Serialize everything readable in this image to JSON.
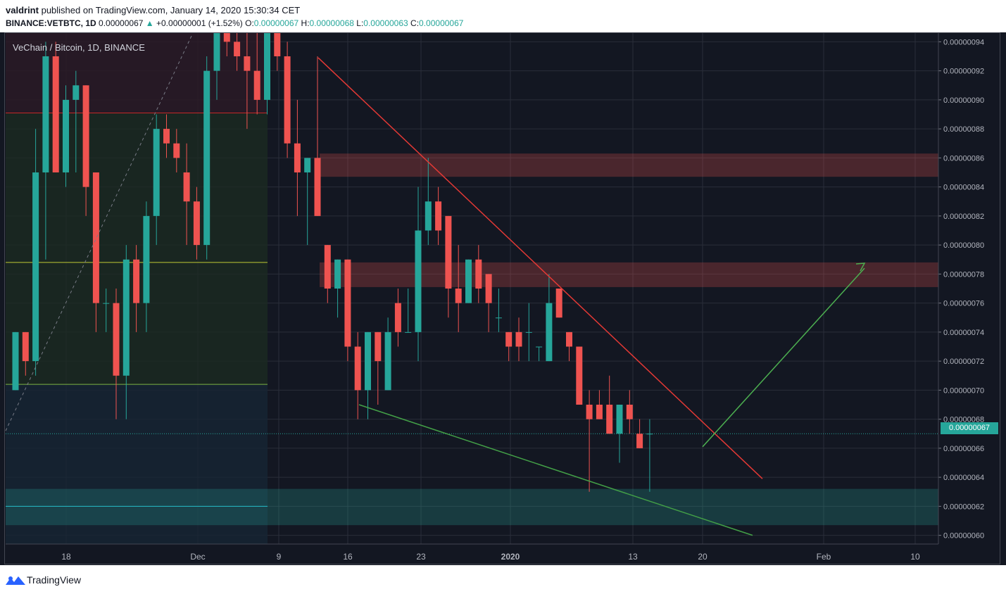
{
  "header": {
    "author": "valdrint",
    "published_text": "published on TradingView.com, January 14, 2020 15:30:34 CET",
    "symbol": "BINANCE:VETBTC, 1D",
    "last": "0.00000067",
    "change": "+0.00000001 (+1.52%)",
    "o_label": "O:",
    "o_value": "0.00000067",
    "h_label": "H:",
    "h_value": "0.00000068",
    "l_label": "L:",
    "l_value": "0.00000063",
    "c_label": "C:",
    "c_value": "0.00000067"
  },
  "legend": "VeChain / Bitcoin, 1D, BINANCE",
  "current_price": "0.00000067",
  "footer": {
    "brand": "TradingView"
  },
  "colors": {
    "up": "#26a69a",
    "down": "#ef5350",
    "bg": "#131722",
    "grid": "#2a2e39"
  },
  "chart_data": {
    "type": "candlestick",
    "y_ticks": [
      "0.00000094",
      "0.00000092",
      "0.00000090",
      "0.00000088",
      "0.00000086",
      "0.00000084",
      "0.00000082",
      "0.00000080",
      "0.00000078",
      "0.00000076",
      "0.00000074",
      "0.00000072",
      "0.00000070",
      "0.00000068",
      "0.00000066",
      "0.00000064",
      "0.00000062",
      "0.00000060"
    ],
    "x_ticks": [
      "18",
      "Dec",
      "9",
      "16",
      "23",
      "2020",
      "13",
      "20",
      "Feb",
      "10"
    ],
    "ylim": [
      5.94e-07,
      9.46e-07
    ],
    "candles": [
      {
        "o": 7e-07,
        "h": 7.4e-07,
        "l": 7e-07,
        "c": 7.4e-07
      },
      {
        "o": 7.4e-07,
        "h": 7.4e-07,
        "l": 7.1e-07,
        "c": 7.2e-07
      },
      {
        "o": 7.2e-07,
        "h": 8.8e-07,
        "l": 7.1e-07,
        "c": 8.5e-07
      },
      {
        "o": 8.5e-07,
        "h": 9.4e-07,
        "l": 7.9e-07,
        "c": 9.3e-07
      },
      {
        "o": 9.3e-07,
        "h": 9.4e-07,
        "l": 8.5e-07,
        "c": 8.5e-07
      },
      {
        "o": 8.5e-07,
        "h": 9.1e-07,
        "l": 8.4e-07,
        "c": 9e-07
      },
      {
        "o": 9e-07,
        "h": 9.2e-07,
        "l": 8.5e-07,
        "c": 9.1e-07
      },
      {
        "o": 9.1e-07,
        "h": 9.1e-07,
        "l": 8.2e-07,
        "c": 8.4e-07
      },
      {
        "o": 8.5e-07,
        "h": 8.5e-07,
        "l": 7.4e-07,
        "c": 7.6e-07
      },
      {
        "o": 7.6e-07,
        "h": 7.7e-07,
        "l": 7.4e-07,
        "c": 7.6e-07
      },
      {
        "o": 7.6e-07,
        "h": 7.7e-07,
        "l": 6.8e-07,
        "c": 7.1e-07
      },
      {
        "o": 7.1e-07,
        "h": 8e-07,
        "l": 6.8e-07,
        "c": 7.9e-07
      },
      {
        "o": 7.9e-07,
        "h": 8e-07,
        "l": 7.4e-07,
        "c": 7.6e-07
      },
      {
        "o": 7.6e-07,
        "h": 8.3e-07,
        "l": 7.4e-07,
        "c": 8.2e-07
      },
      {
        "o": 8.2e-07,
        "h": 8.9e-07,
        "l": 8e-07,
        "c": 8.8e-07
      },
      {
        "o": 8.8e-07,
        "h": 8.9e-07,
        "l": 8.6e-07,
        "c": 8.7e-07
      },
      {
        "o": 8.7e-07,
        "h": 8.8e-07,
        "l": 8.5e-07,
        "c": 8.6e-07
      },
      {
        "o": 8.5e-07,
        "h": 8.7e-07,
        "l": 8e-07,
        "c": 8.3e-07
      },
      {
        "o": 8.3e-07,
        "h": 8.4e-07,
        "l": 7.9e-07,
        "c": 8e-07
      },
      {
        "o": 8e-07,
        "h": 9.3e-07,
        "l": 7.9e-07,
        "c": 9.2e-07
      },
      {
        "o": 9.2e-07,
        "h": 9.6e-07,
        "l": 9e-07,
        "c": 9.5e-07
      },
      {
        "o": 9.5e-07,
        "h": 9.5e-07,
        "l": 9.3e-07,
        "c": 9.4e-07
      },
      {
        "o": 9.4e-07,
        "h": 9.6e-07,
        "l": 9.2e-07,
        "c": 9.3e-07
      },
      {
        "o": 9.3e-07,
        "h": 9.5e-07,
        "l": 8.8e-07,
        "c": 9.2e-07
      },
      {
        "o": 9.2e-07,
        "h": 9.5e-07,
        "l": 8.9e-07,
        "c": 9e-07
      },
      {
        "o": 9e-07,
        "h": 9.6e-07,
        "l": 8.9e-07,
        "c": 9.5e-07
      },
      {
        "o": 9.5e-07,
        "h": 9.6e-07,
        "l": 9.2e-07,
        "c": 9.3e-07
      },
      {
        "o": 9.3e-07,
        "h": 9.4e-07,
        "l": 8.6e-07,
        "c": 8.7e-07
      },
      {
        "o": 8.7e-07,
        "h": 9e-07,
        "l": 8.2e-07,
        "c": 8.5e-07
      },
      {
        "o": 8.5e-07,
        "h": 8.6e-07,
        "l": 8e-07,
        "c": 8.6e-07
      },
      {
        "o": 8.6e-07,
        "h": 9.3e-07,
        "l": 8.2e-07,
        "c": 8.2e-07
      },
      {
        "o": 8e-07,
        "h": 8e-07,
        "l": 7.6e-07,
        "c": 7.7e-07
      },
      {
        "o": 7.7e-07,
        "h": 7.9e-07,
        "l": 7.5e-07,
        "c": 7.9e-07
      },
      {
        "o": 7.9e-07,
        "h": 7.9e-07,
        "l": 7.2e-07,
        "c": 7.3e-07
      },
      {
        "o": 7.3e-07,
        "h": 7.4e-07,
        "l": 6.8e-07,
        "c": 7e-07
      },
      {
        "o": 7e-07,
        "h": 7.4e-07,
        "l": 6.8e-07,
        "c": 7.4e-07
      },
      {
        "o": 7.4e-07,
        "h": 7.4e-07,
        "l": 6.9e-07,
        "c": 7.2e-07
      },
      {
        "o": 7e-07,
        "h": 7.5e-07,
        "l": 7e-07,
        "c": 7.4e-07
      },
      {
        "o": 7.6e-07,
        "h": 7.7e-07,
        "l": 7.3e-07,
        "c": 7.4e-07
      },
      {
        "o": 7.4e-07,
        "h": 7.7e-07,
        "l": 7.4e-07,
        "c": 7.4e-07
      },
      {
        "o": 7.4e-07,
        "h": 8.4e-07,
        "l": 7.2e-07,
        "c": 8.1e-07
      },
      {
        "o": 8.1e-07,
        "h": 8.6e-07,
        "l": 8e-07,
        "c": 8.3e-07
      },
      {
        "o": 8.3e-07,
        "h": 8.4e-07,
        "l": 8e-07,
        "c": 8.1e-07
      },
      {
        "o": 8.2e-07,
        "h": 8.2e-07,
        "l": 7.5e-07,
        "c": 7.7e-07
      },
      {
        "o": 7.7e-07,
        "h": 8e-07,
        "l": 7.4e-07,
        "c": 7.6e-07
      },
      {
        "o": 7.6e-07,
        "h": 7.9e-07,
        "l": 7.6e-07,
        "c": 7.9e-07
      },
      {
        "o": 7.9e-07,
        "h": 8e-07,
        "l": 7.6e-07,
        "c": 7.7e-07
      },
      {
        "o": 7.8e-07,
        "h": 7.8e-07,
        "l": 7.4e-07,
        "c": 7.6e-07
      },
      {
        "o": 7.5e-07,
        "h": 7.7e-07,
        "l": 7.4e-07,
        "c": 7.5e-07
      },
      {
        "o": 7.4e-07,
        "h": 7.4e-07,
        "l": 7.2e-07,
        "c": 7.3e-07
      },
      {
        "o": 7.4e-07,
        "h": 7.5e-07,
        "l": 7.2e-07,
        "c": 7.3e-07
      },
      {
        "o": 7.4e-07,
        "h": 7.6e-07,
        "l": 7.2e-07,
        "c": 7.4e-07
      },
      {
        "o": 7.3e-07,
        "h": 7.3e-07,
        "l": 7.2e-07,
        "c": 7.3e-07
      },
      {
        "o": 7.2e-07,
        "h": 7.8e-07,
        "l": 7.2e-07,
        "c": 7.6e-07
      },
      {
        "o": 7.7e-07,
        "h": 7.7e-07,
        "l": 7.5e-07,
        "c": 7.5e-07
      },
      {
        "o": 7.4e-07,
        "h": 7.4e-07,
        "l": 7.2e-07,
        "c": 7.3e-07
      },
      {
        "o": 7.3e-07,
        "h": 7.3e-07,
        "l": 6.9e-07,
        "c": 6.9e-07
      },
      {
        "o": 6.9e-07,
        "h": 7e-07,
        "l": 6.3e-07,
        "c": 6.8e-07
      },
      {
        "o": 6.9e-07,
        "h": 7e-07,
        "l": 6.8e-07,
        "c": 6.8e-07
      },
      {
        "o": 6.9e-07,
        "h": 7.1e-07,
        "l": 6.7e-07,
        "c": 6.7e-07
      },
      {
        "o": 6.7e-07,
        "h": 6.9e-07,
        "l": 6.5e-07,
        "c": 6.9e-07
      },
      {
        "o": 6.9e-07,
        "h": 7e-07,
        "l": 6.7e-07,
        "c": 6.8e-07
      },
      {
        "o": 6.7e-07,
        "h": 6.8e-07,
        "l": 6.6e-07,
        "c": 6.6e-07
      },
      {
        "o": 6.7e-07,
        "h": 6.8e-07,
        "l": 6.3e-07,
        "c": 6.7e-07
      }
    ]
  }
}
